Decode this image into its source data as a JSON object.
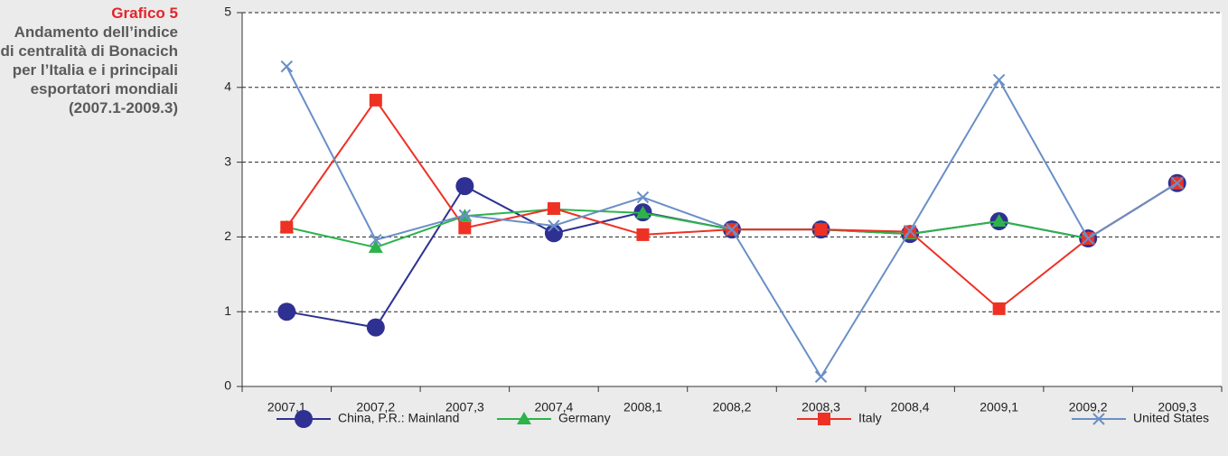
{
  "chart_data": {
    "type": "line",
    "label": "Grafico 5",
    "title": "Andamento dell’indice di centralità di Bonacich per l’Italia e i principali esportatori mondiali (2007.1-2009.3)",
    "categories": [
      "2007,1",
      "2007,2",
      "2007,3",
      "2007,4",
      "2008,1",
      "2008,2",
      "2008,3",
      "2008,4",
      "2009,1",
      "2009,2",
      "2009,3"
    ],
    "series": [
      {
        "name": "China, P.R.: Mainland",
        "color": "#2e3192",
        "marker": "circle",
        "values": [
          1.0,
          0.79,
          2.68,
          2.05,
          2.33,
          2.1,
          2.1,
          2.04,
          2.21,
          1.98,
          2.72
        ]
      },
      {
        "name": "Germany",
        "color": "#2db34a",
        "marker": "triangle",
        "values": [
          2.13,
          1.86,
          2.28,
          2.37,
          2.32,
          2.1,
          2.1,
          2.04,
          2.21,
          1.98,
          2.72
        ]
      },
      {
        "name": "Italy",
        "color": "#ee3124",
        "marker": "square",
        "values": [
          2.13,
          3.83,
          2.12,
          2.38,
          2.03,
          2.1,
          2.1,
          2.07,
          1.04,
          1.98,
          2.72
        ]
      },
      {
        "name": "United States",
        "color": "#6a8fc7",
        "marker": "x",
        "values": [
          4.28,
          1.96,
          2.29,
          2.15,
          2.53,
          2.1,
          0.13,
          2.08,
          4.1,
          1.98,
          2.72
        ]
      }
    ],
    "ylim": [
      0,
      5
    ],
    "yticks": [
      0,
      1,
      2,
      3,
      4,
      5
    ],
    "grid": true,
    "legend": "bottom"
  }
}
